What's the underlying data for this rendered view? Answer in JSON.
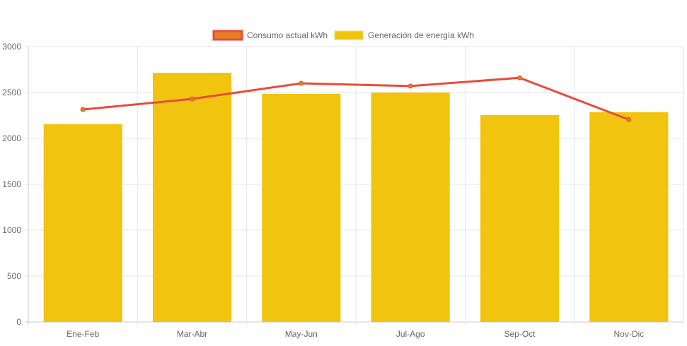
{
  "chart_data": {
    "type": "bar",
    "title": "",
    "xlabel": "",
    "ylabel": "",
    "ylim": [
      0,
      3000
    ],
    "yticks": [
      "0",
      "500",
      "1000",
      "1500",
      "2000",
      "2500",
      "3000"
    ],
    "ytick_values": [
      0,
      500,
      1000,
      1500,
      2000,
      2500,
      3000
    ],
    "grid": true,
    "legend_position": "top-center",
    "categories": [
      "Ene-Feb",
      "Mar-Abr",
      "May-Jun",
      "Jul-Ago",
      "Sep-Oct",
      "Nov-Dic"
    ],
    "series": [
      {
        "name": "Consumo actual kWh",
        "type": "line",
        "values": [
          2315,
          2430,
          2600,
          2570,
          2660,
          2205
        ],
        "color": "#e74c3c",
        "fill": "#e67e22"
      },
      {
        "name": "Generación de energía kWh",
        "type": "bar",
        "values": [
          2155,
          2715,
          2485,
          2500,
          2255,
          2285
        ],
        "color": "#f1c40f"
      }
    ]
  }
}
